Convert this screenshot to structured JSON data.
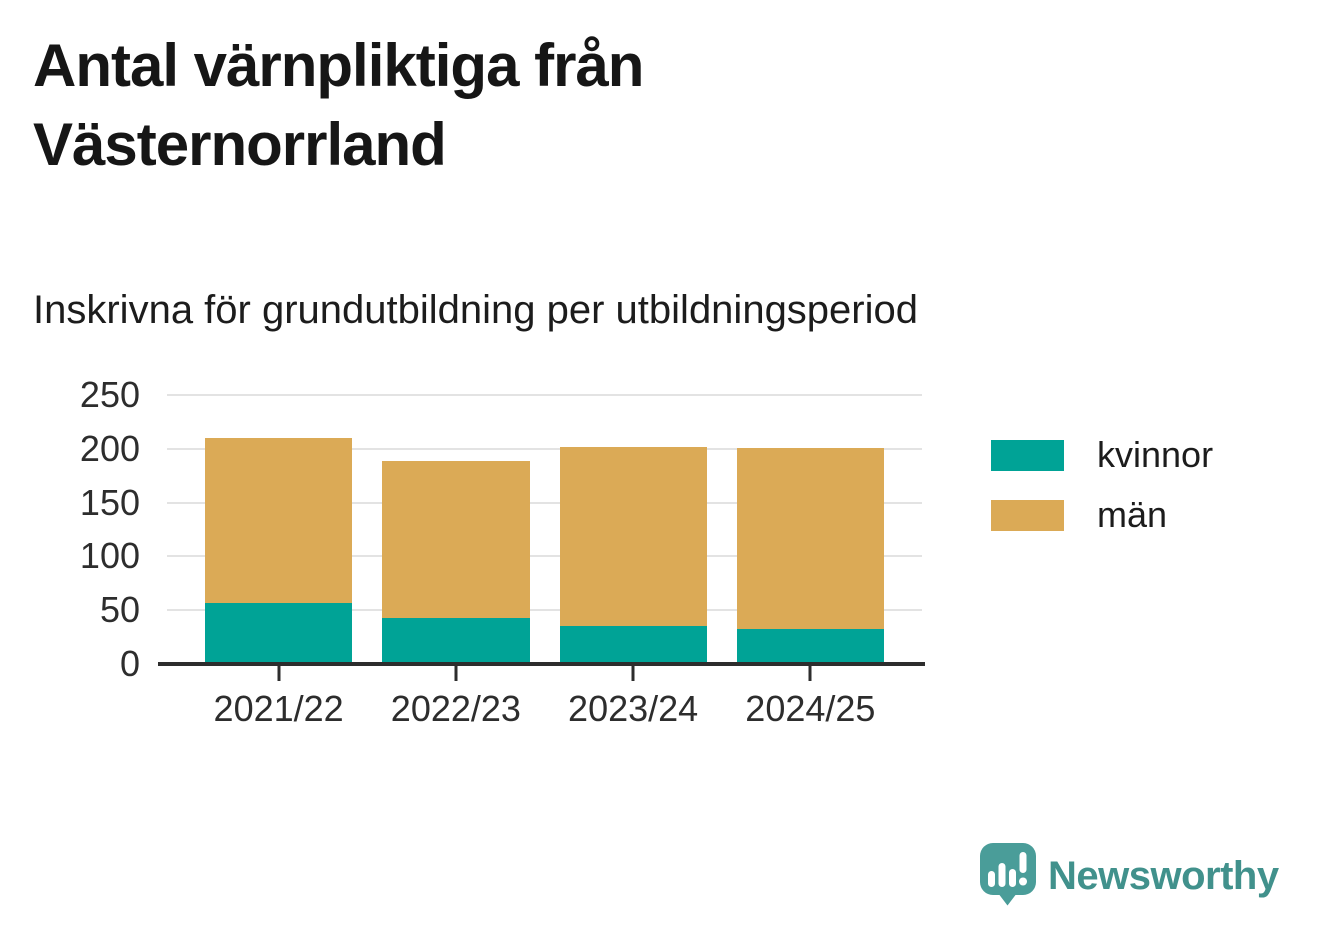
{
  "header": {
    "title": "Antal värnpliktiga från Västernorrland",
    "subtitle": "Inskrivna för grundutbildning per utbildningsperiod"
  },
  "chart_data": {
    "type": "bar",
    "stacked": true,
    "title": "Antal värnpliktiga från Västernorrland",
    "subtitle": "Inskrivna för grundutbildning per utbildningsperiod",
    "categories": [
      "2021/22",
      "2022/23",
      "2023/24",
      "2024/25"
    ],
    "series": [
      {
        "name": "kvinnor",
        "color": "#00A396",
        "values": [
          57,
          43,
          35,
          33
        ]
      },
      {
        "name": "män",
        "color": "#DBAA56",
        "values": [
          153,
          146,
          167,
          168
        ]
      }
    ],
    "totals": [
      210,
      189,
      202,
      201
    ],
    "xlabel": "",
    "ylabel": "",
    "ylim": [
      0,
      250
    ],
    "yticks": [
      0,
      50,
      100,
      150,
      200,
      250
    ],
    "grid": "horizontal",
    "legend_position": "right",
    "axis_color": "#2d2d2d",
    "gridline_color": "#e3e3e3"
  },
  "footer": {
    "brand": "Newsworthy",
    "logo_color": "#4A9D99",
    "text_color": "#41918C"
  }
}
